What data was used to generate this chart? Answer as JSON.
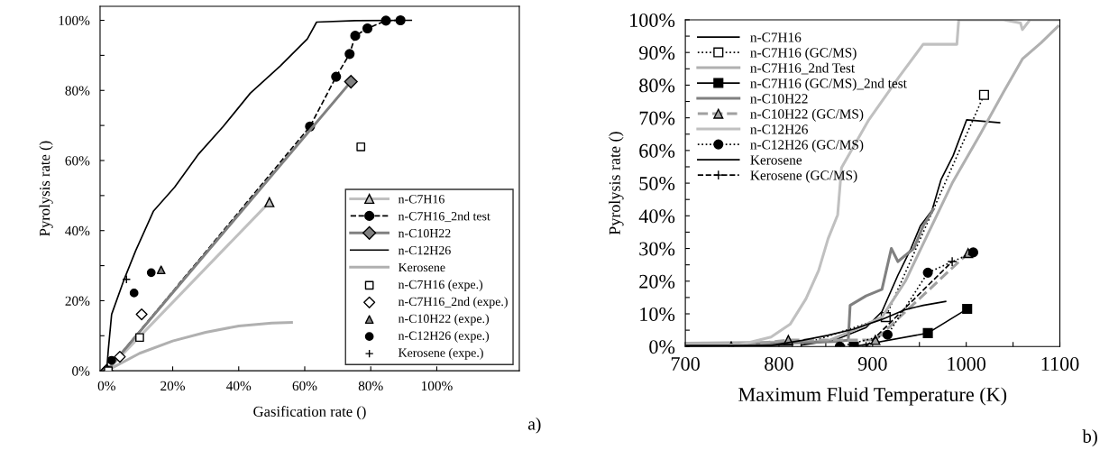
{
  "chart_data": [
    {
      "type": "line",
      "xlabel": "Gasification rate ()",
      "ylabel": "Pyrolysis rate ()",
      "annotations": [
        "a)"
      ],
      "grid": false,
      "legend": "bottom right",
      "xlim": [
        -2,
        125
      ],
      "ylim": [
        0,
        104
      ],
      "xticks": [
        {
          "value": 0,
          "label": "0%"
        },
        {
          "value": 20,
          "label": "20%"
        },
        {
          "value": 40,
          "label": "40%"
        },
        {
          "value": 60,
          "label": "60%"
        },
        {
          "value": 80,
          "label": "80%"
        },
        {
          "value": 100,
          "label": "100%"
        }
      ],
      "yticks": [
        {
          "value": 0,
          "label": "0%"
        },
        {
          "value": 10,
          "label": null
        },
        {
          "value": 20,
          "label": "20%"
        },
        {
          "value": 30,
          "label": null
        },
        {
          "value": 40,
          "label": "40%"
        },
        {
          "value": 50,
          "label": null
        },
        {
          "value": 60,
          "label": "60%"
        },
        {
          "value": 70,
          "label": null
        },
        {
          "value": 80,
          "label": "80%"
        },
        {
          "value": 90,
          "label": null
        },
        {
          "value": 100,
          "label": "100%"
        }
      ],
      "series": [
        {
          "name": "n-C7H16",
          "type": "line",
          "color": "#c0c0c0",
          "marker": "triangle",
          "line_style": "solid",
          "x": [
            0,
            49.3
          ],
          "values": [
            0,
            48.1
          ]
        },
        {
          "name": "n-C7H16_2nd test",
          "type": "line",
          "color": "#000000",
          "marker": "circle",
          "line_style": "dashed",
          "x": [
            0,
            61.6,
            69.5,
            73.6,
            75.3,
            79,
            84.6,
            89
          ],
          "values": [
            0,
            69.7,
            83.9,
            90.4,
            95.6,
            97.7,
            99.9,
            100
          ]
        },
        {
          "name": "n-C10H22",
          "type": "line",
          "color": "#808080",
          "marker": "diamond",
          "line_style": "solid",
          "x": [
            0,
            74
          ],
          "values": [
            0,
            82.5
          ]
        },
        {
          "name": "n-C12H26",
          "type": "line",
          "color": "#000000",
          "marker": "none",
          "line_style": "solid",
          "x": [
            0,
            0.5,
            1.5,
            5.1,
            8.8,
            14.2,
            20.6,
            27.9,
            35.3,
            43.5,
            52.6,
            60.8,
            63.6,
            75.3,
            92.3
          ],
          "values": [
            0,
            6,
            16.1,
            25.6,
            34.3,
            45.6,
            52.4,
            61.9,
            69.7,
            79.2,
            87,
            94.7,
            99.5,
            99.9,
            100
          ]
        },
        {
          "name": "Kerosene",
          "type": "line",
          "color": "#b0b0b0",
          "marker": "none",
          "line_style": "solid",
          "x": [
            0,
            10,
            20,
            30,
            40,
            50,
            56
          ],
          "values": [
            0,
            5,
            8.5,
            11,
            12.8,
            13.6,
            13.8
          ]
        },
        {
          "name": "n-C7H16 (expe.)",
          "type": "scatter",
          "color": "#ffffff",
          "marker": "square",
          "x": [
            0.5,
            10,
            77
          ],
          "values": [
            0,
            9.5,
            63.9
          ]
        },
        {
          "name": "n-C7H16_2nd (expe.)",
          "type": "scatter",
          "color": "#ffffff",
          "marker": "diamond",
          "x": [
            4,
            10.6
          ],
          "values": [
            4,
            16.1
          ]
        },
        {
          "name": "n-C10H22 (expe.)",
          "type": "scatter",
          "color": "#808080",
          "marker": "triangle",
          "x": [
            16.5
          ],
          "values": [
            28.8
          ]
        },
        {
          "name": "n-C12H26 (expe.)",
          "type": "scatter",
          "color": "#000000",
          "marker": "circle",
          "x": [
            1.5,
            8.3,
            13.5
          ],
          "values": [
            3,
            22.2,
            28
          ]
        },
        {
          "name": "Kerosene (expe.)",
          "type": "scatter",
          "color": "#000000",
          "marker": "cross",
          "x": [
            6
          ],
          "values": [
            26.1
          ]
        }
      ]
    },
    {
      "type": "line",
      "xlabel": "Maximum Fluid Temperature (K)",
      "ylabel": "Pyrolysis rate ()",
      "annotations": [
        "b)"
      ],
      "grid": false,
      "legend": "top left",
      "xlim": [
        700,
        1100
      ],
      "ylim": [
        0,
        100
      ],
      "xticks": [
        700,
        {
          "value": 750,
          "label": null
        },
        800,
        {
          "value": 850,
          "label": null
        },
        900,
        {
          "value": 950,
          "label": null
        },
        1000,
        {
          "value": 1050,
          "label": null
        },
        1100
      ],
      "yticks": [
        {
          "value": 0,
          "label": "0%"
        },
        {
          "value": 5,
          "label": null
        },
        {
          "value": 10,
          "label": "10%"
        },
        {
          "value": 15,
          "label": null
        },
        {
          "value": 20,
          "label": "20%"
        },
        {
          "value": 25,
          "label": null
        },
        {
          "value": 30,
          "label": "30%"
        },
        {
          "value": 35,
          "label": null
        },
        {
          "value": 40,
          "label": "40%"
        },
        {
          "value": 45,
          "label": null
        },
        {
          "value": 50,
          "label": "50%"
        },
        {
          "value": 55,
          "label": null
        },
        {
          "value": 60,
          "label": "60%"
        },
        {
          "value": 65,
          "label": null
        },
        {
          "value": 70,
          "label": "70%"
        },
        {
          "value": 75,
          "label": null
        },
        {
          "value": 80,
          "label": "80%"
        },
        {
          "value": 85,
          "label": null
        },
        {
          "value": 90,
          "label": "90%"
        },
        {
          "value": 95,
          "label": null
        },
        {
          "value": 100,
          "label": "100%"
        }
      ],
      "series": [
        {
          "name": "n-C7H16",
          "type": "line",
          "color": "#000000",
          "marker": "none",
          "line_style": "solid",
          "x": [
            700,
            825,
            859,
            893,
            910,
            927,
            941,
            951,
            963.5,
            973,
            986,
            1000.5,
            1035.6
          ],
          "values": [
            0,
            0.5,
            1.9,
            5.8,
            10.7,
            21.8,
            30,
            36.9,
            41.7,
            51,
            58.4,
            69.4,
            68.5
          ]
        },
        {
          "name": "n-C7H16 (GC/MS)",
          "type": "line",
          "color": "#000000",
          "marker": "square",
          "line_style": "dotted",
          "x": [
            819,
            914,
            1019
          ],
          "values": [
            0,
            9,
            77
          ]
        },
        {
          "name": "n-C7H16_2nd Test",
          "type": "line",
          "color": "#b0b0b0",
          "marker": "none",
          "line_style": "solid",
          "x": [
            700,
            850,
            880,
            910,
            935,
            960,
            985,
            1015,
            1040,
            1060,
            1080,
            1098
          ],
          "values": [
            1,
            1.5,
            5,
            9,
            20,
            35,
            50,
            65,
            78,
            88,
            93,
            98
          ]
        },
        {
          "name": "n-C7H16 (GC/MS)_2nd test",
          "type": "line",
          "color": "#000000",
          "marker": "square",
          "line_style": "solid",
          "x": [
            880,
            959,
            1001
          ],
          "values": [
            0,
            4.1,
            11.5
          ]
        },
        {
          "name": "n-C10H22",
          "type": "line",
          "color": "#808080",
          "marker": "none",
          "line_style": "solid",
          "x": [
            700,
            859,
            874,
            876,
            893,
            910,
            920,
            927,
            944,
            954,
            965
          ],
          "values": [
            0,
            1.5,
            1.9,
            12.6,
            15.5,
            17.5,
            30,
            26,
            30,
            36.9,
            42
          ]
        },
        {
          "name": "n-C10H22 (GC/MS)",
          "type": "line",
          "color": "#a0a0a0",
          "marker": "triangle",
          "line_style": "dashed",
          "x": [
            749,
            810,
            903,
            1002
          ],
          "values": [
            0,
            2,
            2,
            28.6
          ]
        },
        {
          "name": "n-C12H26",
          "type": "line",
          "color": "#c0c0c0",
          "marker": "none",
          "line_style": "solid",
          "x": [
            700,
            757.6,
            791.5,
            811.9,
            828.8,
            842.4,
            852.5,
            862.7,
            866.8,
            896,
            928,
            954,
            990,
            992,
            1040,
            1058,
            1060,
            1068,
            1100
          ],
          "values": [
            0.5,
            0.5,
            2.9,
            6.8,
            14.6,
            23.3,
            33,
            40.3,
            54.7,
            69.4,
            82.4,
            92.5,
            92.5,
            100,
            100,
            99,
            97,
            100,
            100
          ]
        },
        {
          "name": "n-C12H26 (GC/MS)",
          "type": "line",
          "color": "#000000",
          "marker": "circle",
          "line_style": "dotted",
          "x": [
            865,
            916,
            959,
            1007.5
          ],
          "values": [
            0,
            3.6,
            22.6,
            28.8
          ]
        },
        {
          "name": "Kerosene",
          "type": "line",
          "color": "#000000",
          "marker": "none",
          "line_style": "solid",
          "x": [
            700,
            791.5,
            825,
            852,
            879.7,
            910,
            933.9,
            954,
            978
          ],
          "values": [
            0.3,
            0.3,
            1.9,
            3.4,
            5.3,
            8.3,
            11.2,
            12.6,
            13.8
          ]
        },
        {
          "name": "Kerosene (GC/MS)",
          "type": "line",
          "color": "#000000",
          "marker": "cross",
          "line_style": "dashed",
          "x": [
            893,
            985
          ],
          "values": [
            0,
            26
          ]
        }
      ]
    }
  ]
}
